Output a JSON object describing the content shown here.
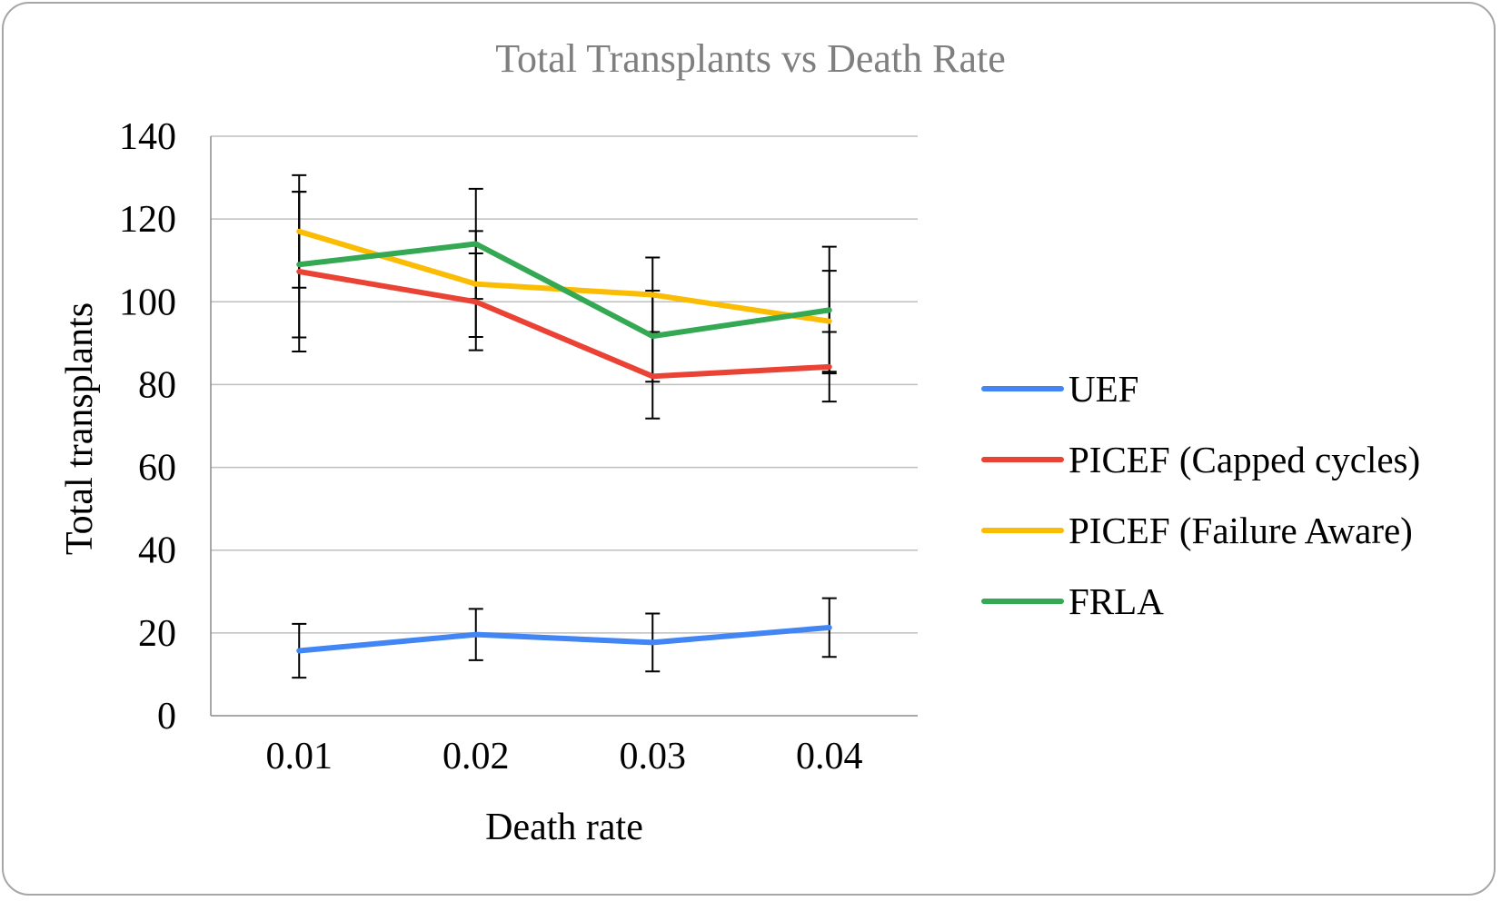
{
  "chart_data": {
    "type": "line",
    "title": "Total Transplants vs Death Rate",
    "xlabel": "Death rate",
    "ylabel": "Total transplants",
    "categories": [
      "0.01",
      "0.02",
      "0.03",
      "0.04"
    ],
    "ylim": [
      0,
      140
    ],
    "yticks": [
      0,
      20,
      40,
      60,
      80,
      100,
      120,
      140
    ],
    "grid": true,
    "legend_position": "right",
    "series": [
      {
        "name": "UEF",
        "color": "#4285f4",
        "values": [
          15.7,
          19.6,
          17.7,
          21.3
        ],
        "err": [
          6.5,
          6.2,
          7.0,
          7.1
        ]
      },
      {
        "name": "PICEF (Capped cycles)",
        "color": "#ea4335",
        "values": [
          107.3,
          100.0,
          82.0,
          84.3
        ],
        "err": [
          19.3,
          11.7,
          10.2,
          8.4
        ]
      },
      {
        "name": "PICEF (Failure Aware)",
        "color": "#fbbc04",
        "values": [
          117.0,
          104.3,
          101.7,
          95.3
        ],
        "err": [
          13.6,
          12.8,
          9.0,
          12.2
        ]
      },
      {
        "name": "FRLA",
        "color": "#34a853",
        "values": [
          109.0,
          114.0,
          91.7,
          98.0
        ],
        "err": [
          17.6,
          13.3,
          11.0,
          15.3
        ]
      }
    ]
  }
}
